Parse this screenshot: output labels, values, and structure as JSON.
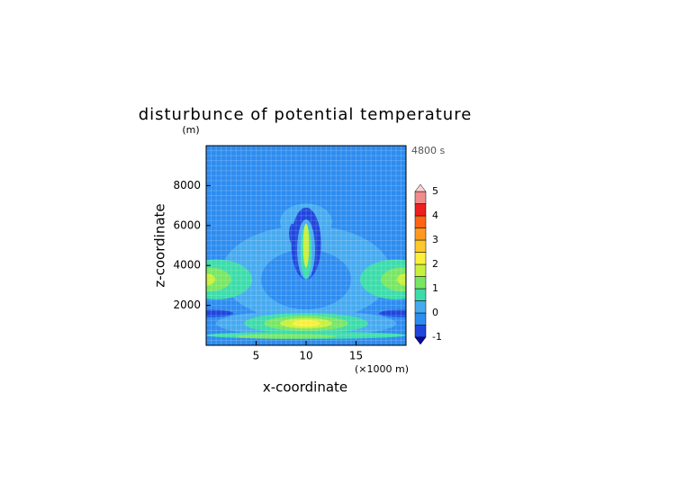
{
  "chart_data": {
    "type": "contour",
    "title": "disturbunce of potential temperature",
    "y_unit": "(m)",
    "x_unit": "(×1000 m)",
    "xlabel": "x-coordinate",
    "ylabel": "z-coordinate",
    "annotation": "4800 s",
    "xlim": [
      0,
      20
    ],
    "xticks": [
      5,
      10,
      15
    ],
    "ylim": [
      0,
      10000
    ],
    "yticks": [
      2000,
      4000,
      6000,
      8000
    ],
    "levels": [
      -1,
      -0.5,
      0,
      0.5,
      1,
      1.5,
      2,
      2.5,
      3,
      3.5,
      4,
      4.5,
      5
    ],
    "level_colors": [
      "#1e46dc",
      "#2d8cf0",
      "#46aaf0",
      "#3cdcaa",
      "#78e664",
      "#c8f03c",
      "#faf03c",
      "#ffc828",
      "#ff9a1e",
      "#ff6414",
      "#f01e1e",
      "#f08c8c"
    ],
    "under_color": "#0a0a9b",
    "over_color": "#fad2d2",
    "colorbar_ticks": [
      -1,
      0,
      1,
      2,
      3,
      4,
      5
    ]
  }
}
